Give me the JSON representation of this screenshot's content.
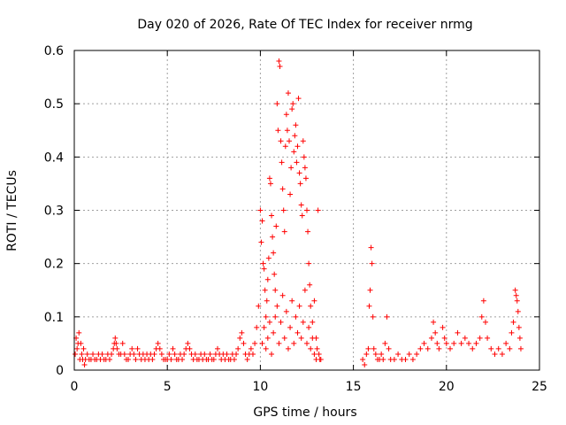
{
  "chart_data": {
    "type": "scatter",
    "title": "Day 020 of 2026, Rate Of TEC Index for receiver nrmg",
    "xlabel": "GPS time / hours",
    "ylabel": "ROTI / TECUs",
    "xlim": [
      0,
      25
    ],
    "ylim": [
      0,
      0.6
    ],
    "x_ticks": [
      0,
      5,
      10,
      15,
      20,
      25
    ],
    "y_ticks": [
      0,
      0.1,
      0.2,
      0.3,
      0.4,
      0.5,
      0.6
    ],
    "x_tick_labels": [
      "0",
      "5",
      "10",
      "15",
      "20",
      "25"
    ],
    "y_tick_labels": [
      "0",
      "0.1",
      "0.2",
      "0.3",
      "0.4",
      "0.5",
      "0.6"
    ],
    "grid": true,
    "marker": "plus",
    "color": "#ff0000",
    "series": [
      {
        "points": [
          [
            0.05,
            0.03
          ],
          [
            0.1,
            0.06
          ],
          [
            0.15,
            0.04
          ],
          [
            0.2,
            0.05
          ],
          [
            0.25,
            0.07
          ],
          [
            0.3,
            0.02
          ],
          [
            0.35,
            0.05
          ],
          [
            0.4,
            0.03
          ],
          [
            0.45,
            0.02
          ],
          [
            0.5,
            0.04
          ],
          [
            0.55,
            0.01
          ],
          [
            0.6,
            0.02
          ],
          [
            0.7,
            0.03
          ],
          [
            0.8,
            0.02
          ],
          [
            0.9,
            0.02
          ],
          [
            1.0,
            0.03
          ],
          [
            1.1,
            0.02
          ],
          [
            1.2,
            0.02
          ],
          [
            1.3,
            0.03
          ],
          [
            1.4,
            0.02
          ],
          [
            1.5,
            0.03
          ],
          [
            1.6,
            0.02
          ],
          [
            1.7,
            0.02
          ],
          [
            1.8,
            0.03
          ],
          [
            1.9,
            0.02
          ],
          [
            2.0,
            0.03
          ],
          [
            2.1,
            0.04
          ],
          [
            2.15,
            0.05
          ],
          [
            2.2,
            0.06
          ],
          [
            2.25,
            0.05
          ],
          [
            2.3,
            0.04
          ],
          [
            2.4,
            0.03
          ],
          [
            2.5,
            0.03
          ],
          [
            2.6,
            0.05
          ],
          [
            2.7,
            0.03
          ],
          [
            2.8,
            0.02
          ],
          [
            2.9,
            0.02
          ],
          [
            3.0,
            0.03
          ],
          [
            3.1,
            0.04
          ],
          [
            3.2,
            0.03
          ],
          [
            3.3,
            0.02
          ],
          [
            3.4,
            0.04
          ],
          [
            3.5,
            0.03
          ],
          [
            3.6,
            0.02
          ],
          [
            3.7,
            0.03
          ],
          [
            3.8,
            0.02
          ],
          [
            3.9,
            0.03
          ],
          [
            4.0,
            0.02
          ],
          [
            4.1,
            0.03
          ],
          [
            4.2,
            0.02
          ],
          [
            4.3,
            0.03
          ],
          [
            4.4,
            0.04
          ],
          [
            4.5,
            0.05
          ],
          [
            4.6,
            0.04
          ],
          [
            4.7,
            0.03
          ],
          [
            4.8,
            0.02
          ],
          [
            4.9,
            0.02
          ],
          [
            5.0,
            0.02
          ],
          [
            5.1,
            0.03
          ],
          [
            5.2,
            0.02
          ],
          [
            5.3,
            0.04
          ],
          [
            5.4,
            0.03
          ],
          [
            5.5,
            0.02
          ],
          [
            5.6,
            0.02
          ],
          [
            5.7,
            0.03
          ],
          [
            5.8,
            0.02
          ],
          [
            5.9,
            0.03
          ],
          [
            6.0,
            0.04
          ],
          [
            6.1,
            0.05
          ],
          [
            6.2,
            0.04
          ],
          [
            6.3,
            0.03
          ],
          [
            6.4,
            0.02
          ],
          [
            6.5,
            0.03
          ],
          [
            6.6,
            0.02
          ],
          [
            6.7,
            0.02
          ],
          [
            6.8,
            0.03
          ],
          [
            6.9,
            0.02
          ],
          [
            7.0,
            0.03
          ],
          [
            7.1,
            0.02
          ],
          [
            7.2,
            0.02
          ],
          [
            7.3,
            0.03
          ],
          [
            7.4,
            0.02
          ],
          [
            7.5,
            0.02
          ],
          [
            7.6,
            0.03
          ],
          [
            7.7,
            0.04
          ],
          [
            7.8,
            0.03
          ],
          [
            7.9,
            0.02
          ],
          [
            8.0,
            0.03
          ],
          [
            8.1,
            0.02
          ],
          [
            8.2,
            0.03
          ],
          [
            8.3,
            0.02
          ],
          [
            8.4,
            0.02
          ],
          [
            8.5,
            0.03
          ],
          [
            8.6,
            0.02
          ],
          [
            8.7,
            0.03
          ],
          [
            8.8,
            0.04
          ],
          [
            8.9,
            0.06
          ],
          [
            9.0,
            0.07
          ],
          [
            9.1,
            0.05
          ],
          [
            9.2,
            0.03
          ],
          [
            9.3,
            0.02
          ],
          [
            9.4,
            0.03
          ],
          [
            9.5,
            0.04
          ],
          [
            9.6,
            0.03
          ],
          [
            9.7,
            0.05
          ],
          [
            9.8,
            0.08
          ],
          [
            9.9,
            0.12
          ],
          [
            10.0,
            0.3
          ],
          [
            10.05,
            0.24
          ],
          [
            10.1,
            0.28
          ],
          [
            10.15,
            0.2
          ],
          [
            10.2,
            0.19
          ],
          [
            10.25,
            0.15
          ],
          [
            10.3,
            0.1
          ],
          [
            10.35,
            0.13
          ],
          [
            10.4,
            0.17
          ],
          [
            10.45,
            0.21
          ],
          [
            10.5,
            0.36
          ],
          [
            10.55,
            0.35
          ],
          [
            10.6,
            0.29
          ],
          [
            10.65,
            0.25
          ],
          [
            10.7,
            0.22
          ],
          [
            10.75,
            0.18
          ],
          [
            10.8,
            0.15
          ],
          [
            10.85,
            0.27
          ],
          [
            10.9,
            0.5
          ],
          [
            10.95,
            0.45
          ],
          [
            11.0,
            0.58
          ],
          [
            11.05,
            0.57
          ],
          [
            11.1,
            0.43
          ],
          [
            11.15,
            0.39
          ],
          [
            11.2,
            0.34
          ],
          [
            11.25,
            0.3
          ],
          [
            11.3,
            0.26
          ],
          [
            11.35,
            0.42
          ],
          [
            11.4,
            0.48
          ],
          [
            11.45,
            0.45
          ],
          [
            11.5,
            0.52
          ],
          [
            11.55,
            0.43
          ],
          [
            11.6,
            0.33
          ],
          [
            11.65,
            0.38
          ],
          [
            11.7,
            0.49
          ],
          [
            11.75,
            0.5
          ],
          [
            11.8,
            0.41
          ],
          [
            11.85,
            0.44
          ],
          [
            11.9,
            0.46
          ],
          [
            11.95,
            0.39
          ],
          [
            12.0,
            0.42
          ],
          [
            12.05,
            0.51
          ],
          [
            12.1,
            0.37
          ],
          [
            12.15,
            0.35
          ],
          [
            12.2,
            0.31
          ],
          [
            12.25,
            0.29
          ],
          [
            12.3,
            0.43
          ],
          [
            12.35,
            0.4
          ],
          [
            12.4,
            0.38
          ],
          [
            12.45,
            0.36
          ],
          [
            12.5,
            0.3
          ],
          [
            12.55,
            0.26
          ],
          [
            12.6,
            0.2
          ],
          [
            12.65,
            0.16
          ],
          [
            12.7,
            0.12
          ],
          [
            12.8,
            0.09
          ],
          [
            12.9,
            0.13
          ],
          [
            13.0,
            0.06
          ],
          [
            13.05,
            0.04
          ],
          [
            13.1,
            0.3
          ],
          [
            13.15,
            0.03
          ],
          [
            13.2,
            0.02
          ],
          [
            13.25,
            0.02
          ],
          [
            10.1,
            0.05
          ],
          [
            10.2,
            0.08
          ],
          [
            10.3,
            0.04
          ],
          [
            10.4,
            0.06
          ],
          [
            10.5,
            0.09
          ],
          [
            10.6,
            0.03
          ],
          [
            10.7,
            0.07
          ],
          [
            10.8,
            0.1
          ],
          [
            10.9,
            0.12
          ],
          [
            11.0,
            0.05
          ],
          [
            11.1,
            0.09
          ],
          [
            11.2,
            0.14
          ],
          [
            11.3,
            0.06
          ],
          [
            11.4,
            0.11
          ],
          [
            11.5,
            0.04
          ],
          [
            11.6,
            0.08
          ],
          [
            11.7,
            0.13
          ],
          [
            11.8,
            0.05
          ],
          [
            11.9,
            0.1
          ],
          [
            12.0,
            0.07
          ],
          [
            12.1,
            0.12
          ],
          [
            12.2,
            0.06
          ],
          [
            12.3,
            0.09
          ],
          [
            12.4,
            0.15
          ],
          [
            12.5,
            0.05
          ],
          [
            12.6,
            0.08
          ],
          [
            12.7,
            0.04
          ],
          [
            12.8,
            0.06
          ],
          [
            12.9,
            0.03
          ],
          [
            13.0,
            0.02
          ],
          [
            15.5,
            0.02
          ],
          [
            15.6,
            0.01
          ],
          [
            15.7,
            0.03
          ],
          [
            15.8,
            0.04
          ],
          [
            15.85,
            0.12
          ],
          [
            15.9,
            0.15
          ],
          [
            15.95,
            0.23
          ],
          [
            16.0,
            0.2
          ],
          [
            16.05,
            0.1
          ],
          [
            16.1,
            0.04
          ],
          [
            16.2,
            0.03
          ],
          [
            16.3,
            0.02
          ],
          [
            16.4,
            0.02
          ],
          [
            16.5,
            0.03
          ],
          [
            16.6,
            0.02
          ],
          [
            16.7,
            0.05
          ],
          [
            16.8,
            0.1
          ],
          [
            16.9,
            0.04
          ],
          [
            17.0,
            0.02
          ],
          [
            17.2,
            0.02
          ],
          [
            17.4,
            0.03
          ],
          [
            17.6,
            0.02
          ],
          [
            17.8,
            0.02
          ],
          [
            18.0,
            0.03
          ],
          [
            18.2,
            0.02
          ],
          [
            18.4,
            0.03
          ],
          [
            18.6,
            0.04
          ],
          [
            18.8,
            0.05
          ],
          [
            19.0,
            0.04
          ],
          [
            19.2,
            0.06
          ],
          [
            19.3,
            0.09
          ],
          [
            19.4,
            0.07
          ],
          [
            19.5,
            0.05
          ],
          [
            19.6,
            0.04
          ],
          [
            19.8,
            0.08
          ],
          [
            19.9,
            0.06
          ],
          [
            20.0,
            0.05
          ],
          [
            20.2,
            0.04
          ],
          [
            20.4,
            0.05
          ],
          [
            20.6,
            0.07
          ],
          [
            20.8,
            0.05
          ],
          [
            21.0,
            0.06
          ],
          [
            21.2,
            0.05
          ],
          [
            21.4,
            0.04
          ],
          [
            21.6,
            0.05
          ],
          [
            21.8,
            0.06
          ],
          [
            21.9,
            0.1
          ],
          [
            22.0,
            0.13
          ],
          [
            22.1,
            0.09
          ],
          [
            22.2,
            0.06
          ],
          [
            22.4,
            0.04
          ],
          [
            22.6,
            0.03
          ],
          [
            22.8,
            0.04
          ],
          [
            23.0,
            0.03
          ],
          [
            23.2,
            0.05
          ],
          [
            23.4,
            0.04
          ],
          [
            23.5,
            0.07
          ],
          [
            23.6,
            0.09
          ],
          [
            23.7,
            0.15
          ],
          [
            23.75,
            0.14
          ],
          [
            23.8,
            0.13
          ],
          [
            23.85,
            0.11
          ],
          [
            23.9,
            0.08
          ],
          [
            23.95,
            0.06
          ],
          [
            24.0,
            0.04
          ]
        ]
      }
    ]
  }
}
